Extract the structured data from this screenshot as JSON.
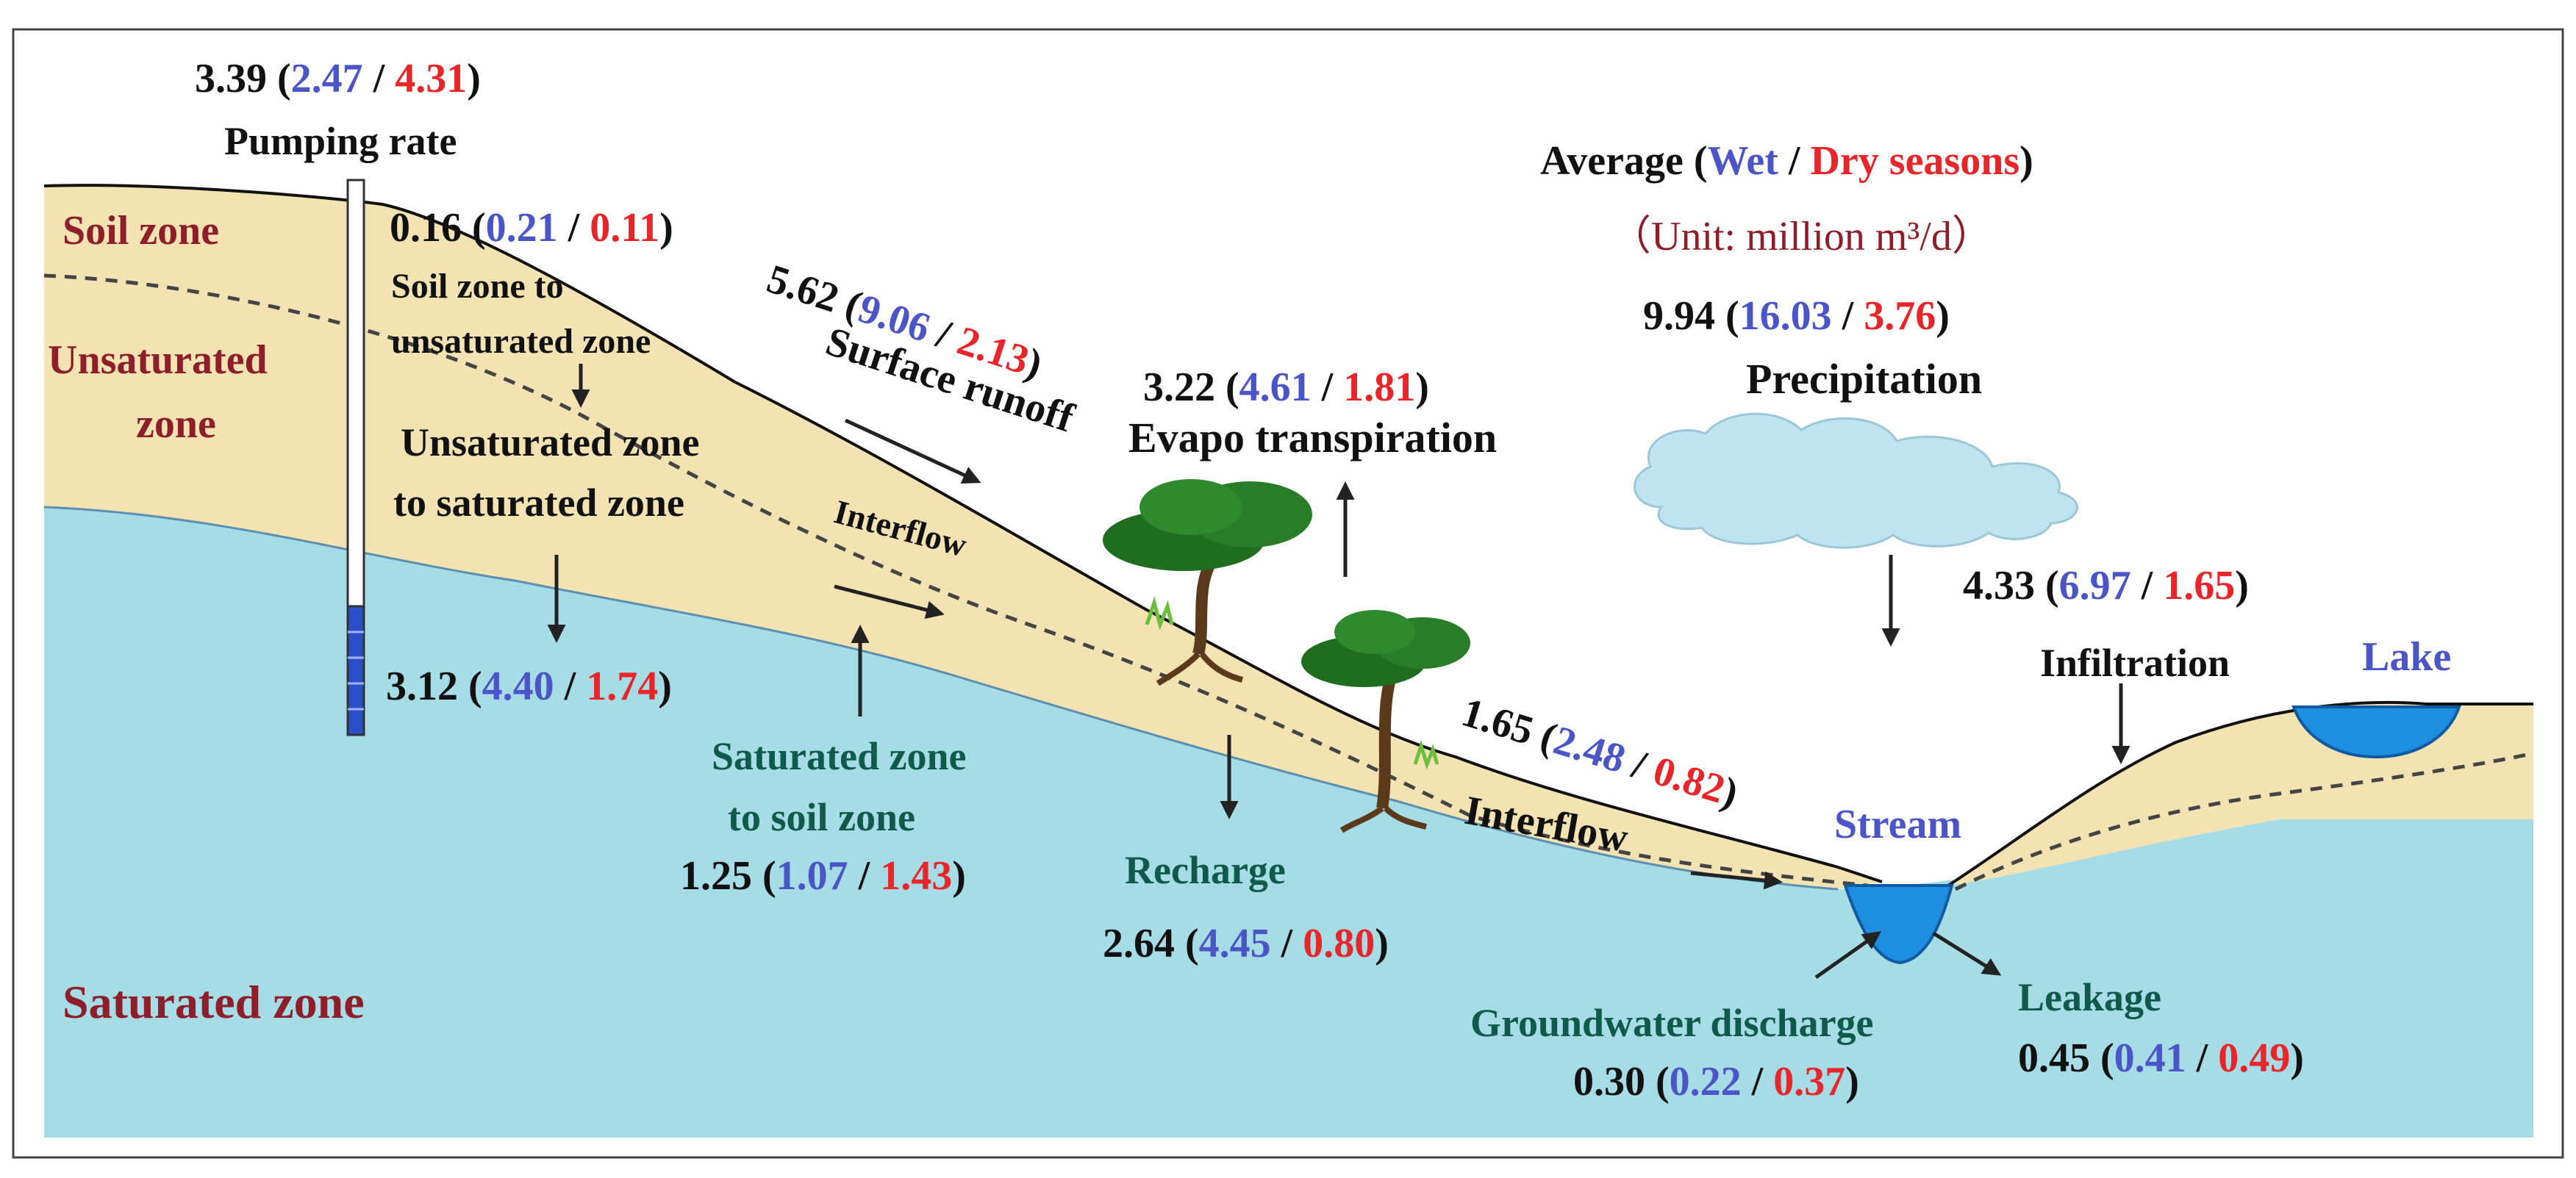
{
  "legend": {
    "average": "Average (",
    "wet": "Wet",
    "sep": " / ",
    "dry": "Dry seasons",
    "close": ")",
    "unit": "（Unit: million m³/d）"
  },
  "zones": {
    "soil": "Soil zone",
    "unsaturated_1": "Unsaturated",
    "unsaturated_2": "zone",
    "saturated": "Saturated zone"
  },
  "water_bodies": {
    "stream": "Stream",
    "lake": "Lake"
  },
  "fluxes": {
    "pumping": {
      "label": "Pumping rate",
      "avg": "3.39",
      "wet": "2.47",
      "dry": "4.31"
    },
    "soil_to_unsat": {
      "label_1": "Soil zone to",
      "label_2": "unsaturated zone",
      "avg": "0.16",
      "wet": "0.21",
      "dry": "0.11"
    },
    "unsat_to_sat": {
      "label_1": "Unsaturated zone",
      "label_2": "to saturated zone",
      "avg": "3.12",
      "wet": "4.40",
      "dry": "1.74"
    },
    "surface_runoff": {
      "label": "Surface runoff",
      "avg": "5.62",
      "wet": "9.06",
      "dry": "2.13"
    },
    "interflow_upper": {
      "label": "Interflow"
    },
    "evapotranspiration": {
      "label": "Evapo transpiration",
      "avg": "3.22",
      "wet": "4.61",
      "dry": "1.81"
    },
    "precipitation": {
      "label": "Precipitation",
      "avg": "9.94",
      "wet": "16.03",
      "dry": "3.76"
    },
    "infiltration": {
      "label": "Infiltration",
      "avg": "4.33",
      "wet": "6.97",
      "dry": "1.65"
    },
    "sat_to_soil": {
      "label_1": "Saturated zone",
      "label_2": "to soil zone",
      "avg": "1.25",
      "wet": "1.07",
      "dry": "1.43"
    },
    "recharge": {
      "label": "Recharge",
      "avg": "2.64",
      "wet": "4.45",
      "dry": "0.80"
    },
    "interflow_lower": {
      "label": "Interflow",
      "avg": "1.65",
      "wet": "2.48",
      "dry": "0.82"
    },
    "gw_discharge": {
      "label": "Groundwater discharge",
      "avg": "0.30",
      "wet": "0.22",
      "dry": "0.37"
    },
    "leakage": {
      "label": "Leakage",
      "avg": "0.45",
      "wet": "0.41",
      "dry": "0.49"
    }
  },
  "colors": {
    "saturated": "#a6dce6",
    "soil": "#f3e2b2",
    "water": "#1e8ee0",
    "cloud": "#bfe3ef",
    "wet": "#4b55c8",
    "dry": "#e8262a",
    "zone_label": "#8e1f2a"
  }
}
